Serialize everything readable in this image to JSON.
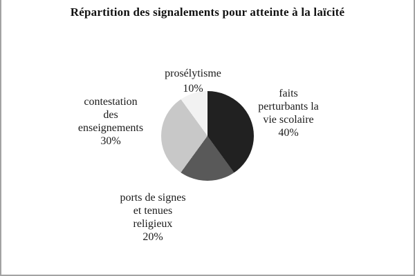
{
  "page": {
    "background": "#ffffff",
    "frame_color": "#a3a3a3",
    "text_color": "#1b1b1b"
  },
  "chart_data": {
    "type": "pie",
    "title": "Répartition des signalements pour atteinte à la laïcité",
    "direction": "clockwise",
    "start_angle_deg": 0,
    "legend_position": "none",
    "slices": [
      {
        "label": "faits perturbants la vie scolaire",
        "value_pct": 40,
        "color": "#212121",
        "label_lines": [
          "faits",
          "perturbants la",
          "vie scolaire",
          "40%"
        ]
      },
      {
        "label": "ports de signes et tenues religieux",
        "value_pct": 20,
        "color": "#595959",
        "label_lines": [
          "ports de signes",
          "et tenues",
          "religieux",
          "20%"
        ]
      },
      {
        "label": "contestation des enseignements",
        "value_pct": 30,
        "color": "#c8c8c8",
        "label_lines": [
          "contestation",
          "des",
          "enseignements",
          "30%"
        ]
      },
      {
        "label": "prosélytisme",
        "value_pct": 10,
        "color": "#f2f2f2",
        "label_lines": [
          "prosélytisme",
          "10%"
        ]
      }
    ]
  }
}
